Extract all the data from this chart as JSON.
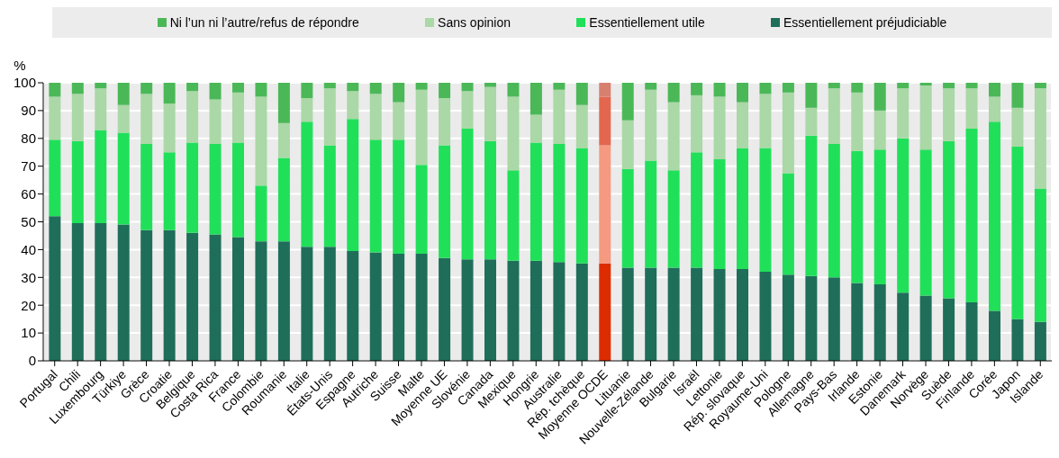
{
  "chart_data": {
    "type": "bar",
    "stacked": true,
    "ylabel": "%",
    "categories": [
      "Portugal",
      "Chili",
      "Luxembourg",
      "Türkiye",
      "Grèce",
      "Croatie",
      "Belgique",
      "Costa Rica",
      "France",
      "Colombie",
      "Roumanie",
      "Italie",
      "États-Unis",
      "Espagne",
      "Autriche",
      "Suisse",
      "Malte",
      "Moyenne UE",
      "Slovénie",
      "Canada",
      "Mexique",
      "Hongrie",
      "Australie",
      "Rép. tchèque",
      "Moyenne OCDE",
      "Lituanie",
      "Nouvelle-Zélande",
      "Bulgarie",
      "Israël",
      "Lettonie",
      "Rép. slovaque",
      "Royaume-Uni",
      "Pologne",
      "Allemagne",
      "Pays-Bas",
      "Irlande",
      "Estonie",
      "Danemark",
      "Norvège",
      "Suède",
      "Finlande",
      "Corée",
      "Japon",
      "Islande"
    ],
    "series": [
      {
        "name": "Essentiellement préjudiciable",
        "color": "#1f6e5a",
        "colors": [
          "#1f6e5a",
          "#1f6e5a",
          "#1f6e5a",
          "#1f6e5a",
          "#1f6e5a",
          "#1f6e5a",
          "#1f6e5a",
          "#1f6e5a",
          "#1f6e5a",
          "#1f6e5a",
          "#1f6e5a",
          "#1f6e5a",
          "#1f6e5a",
          "#1f6e5a",
          "#1f6e5a",
          "#1f6e5a",
          "#1f6e5a",
          "#1f6e5a",
          "#1f6e5a",
          "#1f6e5a",
          "#1f6e5a",
          "#1f6e5a",
          "#1f6e5a",
          "#1f6e5a",
          "#dd2c00",
          "#1f6e5a",
          "#1f6e5a",
          "#1f6e5a",
          "#1f6e5a",
          "#1f6e5a",
          "#1f6e5a",
          "#1f6e5a",
          "#1f6e5a",
          "#1f6e5a",
          "#1f6e5a",
          "#1f6e5a",
          "#1f6e5a",
          "#1f6e5a",
          "#1f6e5a",
          "#1f6e5a",
          "#1f6e5a",
          "#1f6e5a",
          "#1f6e5a",
          "#1f6e5a"
        ],
        "values": [
          52,
          49.5,
          49.5,
          49,
          47,
          47,
          46,
          45.5,
          44.5,
          43,
          43,
          41,
          41,
          39.5,
          39,
          38.5,
          38.5,
          37,
          36.5,
          36.5,
          36,
          36,
          35.5,
          35,
          35,
          33.5,
          33.5,
          33.5,
          33.5,
          33,
          33,
          32,
          31,
          30.5,
          30,
          28,
          27.5,
          24.5,
          23.5,
          22.5,
          21,
          18,
          15,
          14
        ]
      },
      {
        "name": "Essentiellement utile",
        "color": "#20e05a",
        "colors": [
          "#20e05a",
          "#20e05a",
          "#20e05a",
          "#20e05a",
          "#20e05a",
          "#20e05a",
          "#20e05a",
          "#20e05a",
          "#20e05a",
          "#20e05a",
          "#20e05a",
          "#20e05a",
          "#20e05a",
          "#20e05a",
          "#20e05a",
          "#20e05a",
          "#20e05a",
          "#20e05a",
          "#20e05a",
          "#20e05a",
          "#20e05a",
          "#20e05a",
          "#20e05a",
          "#20e05a",
          "#f59a80",
          "#20e05a",
          "#20e05a",
          "#20e05a",
          "#20e05a",
          "#20e05a",
          "#20e05a",
          "#20e05a",
          "#20e05a",
          "#20e05a",
          "#20e05a",
          "#20e05a",
          "#20e05a",
          "#20e05a",
          "#20e05a",
          "#20e05a",
          "#20e05a",
          "#20e05a",
          "#20e05a",
          "#20e05a"
        ],
        "values": [
          27.5,
          29.5,
          33.5,
          33,
          31,
          28,
          32.5,
          32.5,
          34,
          20,
          30,
          45,
          36.5,
          47.5,
          40.5,
          41,
          32,
          40.5,
          47,
          42.5,
          32.5,
          42.5,
          42.5,
          41.5,
          42.5,
          35.5,
          38.5,
          35,
          41.5,
          39.5,
          43.5,
          44.5,
          36.5,
          50.5,
          48,
          47.5,
          48.5,
          55.5,
          52.5,
          56.5,
          62.5,
          68,
          62,
          48
        ]
      },
      {
        "name": "Sans opinion",
        "color": "#aad8a6",
        "colors": [
          "#aad8a6",
          "#aad8a6",
          "#aad8a6",
          "#aad8a6",
          "#aad8a6",
          "#aad8a6",
          "#aad8a6",
          "#aad8a6",
          "#aad8a6",
          "#aad8a6",
          "#aad8a6",
          "#aad8a6",
          "#aad8a6",
          "#aad8a6",
          "#aad8a6",
          "#aad8a6",
          "#aad8a6",
          "#aad8a6",
          "#aad8a6",
          "#aad8a6",
          "#aad8a6",
          "#aad8a6",
          "#aad8a6",
          "#aad8a6",
          "#e3674f",
          "#aad8a6",
          "#aad8a6",
          "#aad8a6",
          "#aad8a6",
          "#aad8a6",
          "#aad8a6",
          "#aad8a6",
          "#aad8a6",
          "#aad8a6",
          "#aad8a6",
          "#aad8a6",
          "#aad8a6",
          "#aad8a6",
          "#aad8a6",
          "#aad8a6",
          "#aad8a6",
          "#aad8a6",
          "#aad8a6",
          "#aad8a6"
        ],
        "values": [
          15.5,
          17,
          15,
          10,
          18,
          17.5,
          18.5,
          16,
          18,
          32,
          12.5,
          8.5,
          20.5,
          10,
          16.5,
          13.5,
          27,
          17,
          13.5,
          19.5,
          26.5,
          10,
          19.5,
          15.5,
          17.5,
          17.5,
          25.5,
          24.5,
          20.5,
          22.5,
          16.5,
          19.5,
          29,
          10,
          20,
          21,
          14,
          18,
          23,
          19,
          14.5,
          9,
          14,
          36
        ]
      },
      {
        "name": "Ni l’un ni l’autre/refus de répondre",
        "color": "#4bb858",
        "colors": [
          "#4bb858",
          "#4bb858",
          "#4bb858",
          "#4bb858",
          "#4bb858",
          "#4bb858",
          "#4bb858",
          "#4bb858",
          "#4bb858",
          "#4bb858",
          "#4bb858",
          "#4bb858",
          "#4bb858",
          "#4bb858",
          "#4bb858",
          "#4bb858",
          "#4bb858",
          "#4bb858",
          "#4bb858",
          "#4bb858",
          "#4bb858",
          "#4bb858",
          "#4bb858",
          "#4bb858",
          "#d88070",
          "#4bb858",
          "#4bb858",
          "#4bb858",
          "#4bb858",
          "#4bb858",
          "#4bb858",
          "#4bb858",
          "#4bb858",
          "#4bb858",
          "#4bb858",
          "#4bb858",
          "#4bb858",
          "#4bb858",
          "#4bb858",
          "#4bb858",
          "#4bb858",
          "#4bb858",
          "#4bb858",
          "#4bb858"
        ],
        "values": [
          5,
          4,
          2,
          8,
          4,
          7.5,
          3,
          6,
          3.5,
          5,
          14.5,
          5.5,
          2,
          3,
          4,
          7,
          2.5,
          5.5,
          3,
          1.5,
          5,
          11.5,
          2.5,
          8,
          5,
          13.5,
          2.5,
          7,
          4.5,
          5,
          7,
          4,
          3.5,
          9,
          2,
          3.5,
          10,
          2,
          1,
          2,
          2,
          5,
          9,
          2
        ]
      }
    ],
    "ylim": [
      0,
      100
    ],
    "yticks": [
      0,
      10,
      20,
      30,
      40,
      50,
      60,
      70,
      80,
      90,
      100
    ],
    "grid": true,
    "legend": "top"
  }
}
